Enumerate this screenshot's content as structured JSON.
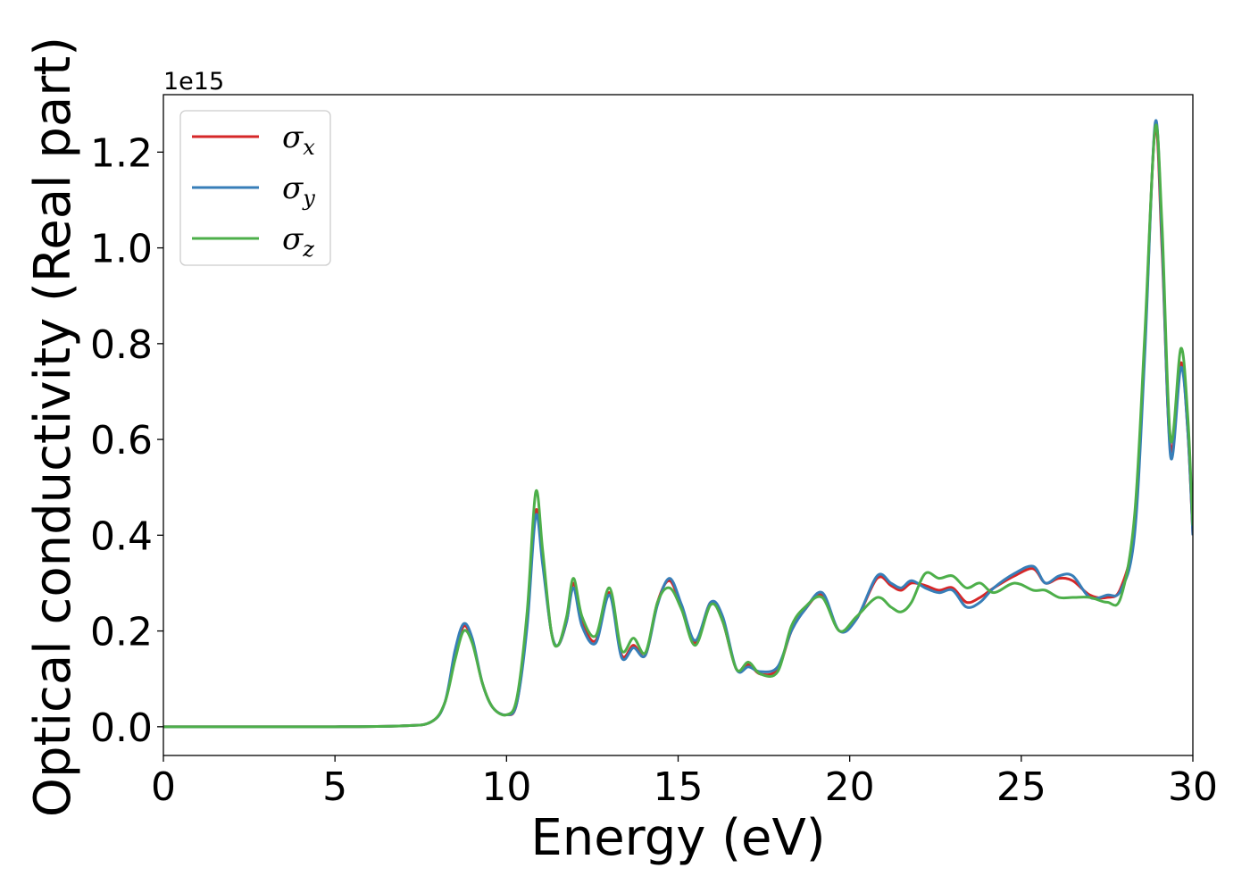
{
  "chart_data": {
    "type": "line",
    "title": "",
    "xlabel": "Energy (eV)",
    "ylabel": "Optical conductivity (Real part)",
    "y_offset_label": "1e15",
    "xlim": [
      0,
      30
    ],
    "ylim": [
      -0.06,
      1.32
    ],
    "xticks": [
      0,
      5,
      10,
      15,
      20,
      25,
      30
    ],
    "xtick_labels": [
      "0",
      "5",
      "10",
      "15",
      "20",
      "25",
      "30"
    ],
    "yticks": [
      0.0,
      0.2,
      0.4,
      0.6,
      0.8,
      1.0,
      1.2
    ],
    "ytick_labels": [
      "0.0",
      "0.2",
      "0.4",
      "0.6",
      "0.8",
      "1.0",
      "1.2"
    ],
    "grid": false,
    "legend_position": "top-left",
    "series": [
      {
        "name": "σ",
        "subscript": "x",
        "color": "#d62728",
        "points": [
          [
            0,
            0
          ],
          [
            5,
            0
          ],
          [
            7,
            0.002
          ],
          [
            7.8,
            0.01
          ],
          [
            8.2,
            0.05
          ],
          [
            8.5,
            0.15
          ],
          [
            8.75,
            0.21
          ],
          [
            9,
            0.18
          ],
          [
            9.3,
            0.09
          ],
          [
            9.6,
            0.04
          ],
          [
            10,
            0.025
          ],
          [
            10.3,
            0.05
          ],
          [
            10.6,
            0.22
          ],
          [
            10.85,
            0.45
          ],
          [
            11.05,
            0.35
          ],
          [
            11.3,
            0.2
          ],
          [
            11.5,
            0.17
          ],
          [
            11.75,
            0.22
          ],
          [
            11.95,
            0.3
          ],
          [
            12.2,
            0.22
          ],
          [
            12.6,
            0.18
          ],
          [
            13,
            0.28
          ],
          [
            13.35,
            0.15
          ],
          [
            13.7,
            0.17
          ],
          [
            14.05,
            0.15
          ],
          [
            14.4,
            0.26
          ],
          [
            14.75,
            0.305
          ],
          [
            15.1,
            0.25
          ],
          [
            15.5,
            0.175
          ],
          [
            15.95,
            0.26
          ],
          [
            16.3,
            0.22
          ],
          [
            16.7,
            0.12
          ],
          [
            17.05,
            0.13
          ],
          [
            17.4,
            0.11
          ],
          [
            17.9,
            0.12
          ],
          [
            18.3,
            0.2
          ],
          [
            18.7,
            0.245
          ],
          [
            19.2,
            0.275
          ],
          [
            19.7,
            0.2
          ],
          [
            20.2,
            0.225
          ],
          [
            20.8,
            0.31
          ],
          [
            21.2,
            0.295
          ],
          [
            21.5,
            0.285
          ],
          [
            21.8,
            0.3
          ],
          [
            22.2,
            0.295
          ],
          [
            22.6,
            0.285
          ],
          [
            23,
            0.29
          ],
          [
            23.4,
            0.26
          ],
          [
            23.8,
            0.27
          ],
          [
            24.2,
            0.29
          ],
          [
            24.8,
            0.315
          ],
          [
            25.35,
            0.33
          ],
          [
            25.7,
            0.3
          ],
          [
            26.1,
            0.31
          ],
          [
            26.5,
            0.305
          ],
          [
            27.0,
            0.275
          ],
          [
            27.5,
            0.27
          ],
          [
            27.9,
            0.29
          ],
          [
            28.3,
            0.42
          ],
          [
            28.6,
            0.8
          ],
          [
            28.9,
            1.25
          ],
          [
            29.1,
            1.0
          ],
          [
            29.35,
            0.58
          ],
          [
            29.65,
            0.76
          ],
          [
            29.85,
            0.62
          ],
          [
            30,
            0.4
          ]
        ]
      },
      {
        "name": "σ",
        "subscript": "y",
        "color": "#377eb8",
        "points": [
          [
            0,
            0
          ],
          [
            5,
            0
          ],
          [
            7,
            0.002
          ],
          [
            7.8,
            0.01
          ],
          [
            8.2,
            0.05
          ],
          [
            8.5,
            0.16
          ],
          [
            8.75,
            0.215
          ],
          [
            9,
            0.185
          ],
          [
            9.3,
            0.09
          ],
          [
            9.6,
            0.04
          ],
          [
            10,
            0.025
          ],
          [
            10.3,
            0.05
          ],
          [
            10.6,
            0.21
          ],
          [
            10.85,
            0.44
          ],
          [
            11.05,
            0.34
          ],
          [
            11.3,
            0.2
          ],
          [
            11.5,
            0.17
          ],
          [
            11.75,
            0.22
          ],
          [
            11.95,
            0.29
          ],
          [
            12.2,
            0.21
          ],
          [
            12.6,
            0.175
          ],
          [
            13,
            0.275
          ],
          [
            13.35,
            0.145
          ],
          [
            13.7,
            0.165
          ],
          [
            14.05,
            0.15
          ],
          [
            14.4,
            0.255
          ],
          [
            14.75,
            0.31
          ],
          [
            15.1,
            0.255
          ],
          [
            15.5,
            0.18
          ],
          [
            15.95,
            0.26
          ],
          [
            16.3,
            0.23
          ],
          [
            16.7,
            0.12
          ],
          [
            17.05,
            0.125
          ],
          [
            17.4,
            0.115
          ],
          [
            17.9,
            0.125
          ],
          [
            18.3,
            0.2
          ],
          [
            18.7,
            0.245
          ],
          [
            19.2,
            0.28
          ],
          [
            19.7,
            0.2
          ],
          [
            20.2,
            0.225
          ],
          [
            20.8,
            0.315
          ],
          [
            21.2,
            0.3
          ],
          [
            21.5,
            0.29
          ],
          [
            21.8,
            0.305
          ],
          [
            22.2,
            0.29
          ],
          [
            22.6,
            0.28
          ],
          [
            23,
            0.285
          ],
          [
            23.4,
            0.25
          ],
          [
            23.8,
            0.26
          ],
          [
            24.2,
            0.29
          ],
          [
            24.8,
            0.32
          ],
          [
            25.35,
            0.335
          ],
          [
            25.7,
            0.3
          ],
          [
            26.1,
            0.315
          ],
          [
            26.5,
            0.315
          ],
          [
            27.0,
            0.27
          ],
          [
            27.5,
            0.275
          ],
          [
            27.9,
            0.285
          ],
          [
            28.3,
            0.4
          ],
          [
            28.6,
            0.78
          ],
          [
            28.9,
            1.26
          ],
          [
            29.1,
            1.02
          ],
          [
            29.35,
            0.565
          ],
          [
            29.65,
            0.75
          ],
          [
            29.85,
            0.62
          ],
          [
            30,
            0.4
          ]
        ]
      },
      {
        "name": "σ",
        "subscript": "z",
        "color": "#4daf4a",
        "points": [
          [
            0,
            0
          ],
          [
            5,
            0
          ],
          [
            7,
            0.002
          ],
          [
            7.8,
            0.01
          ],
          [
            8.2,
            0.05
          ],
          [
            8.5,
            0.14
          ],
          [
            8.75,
            0.2
          ],
          [
            9,
            0.175
          ],
          [
            9.3,
            0.09
          ],
          [
            9.6,
            0.04
          ],
          [
            10,
            0.025
          ],
          [
            10.3,
            0.06
          ],
          [
            10.6,
            0.24
          ],
          [
            10.85,
            0.49
          ],
          [
            11.05,
            0.37
          ],
          [
            11.3,
            0.2
          ],
          [
            11.5,
            0.17
          ],
          [
            11.75,
            0.23
          ],
          [
            11.95,
            0.31
          ],
          [
            12.2,
            0.23
          ],
          [
            12.6,
            0.19
          ],
          [
            13,
            0.29
          ],
          [
            13.35,
            0.16
          ],
          [
            13.7,
            0.185
          ],
          [
            14.05,
            0.155
          ],
          [
            14.4,
            0.26
          ],
          [
            14.75,
            0.29
          ],
          [
            15.1,
            0.245
          ],
          [
            15.5,
            0.17
          ],
          [
            15.95,
            0.255
          ],
          [
            16.3,
            0.22
          ],
          [
            16.7,
            0.12
          ],
          [
            17.05,
            0.135
          ],
          [
            17.4,
            0.11
          ],
          [
            17.9,
            0.115
          ],
          [
            18.3,
            0.21
          ],
          [
            18.7,
            0.25
          ],
          [
            19.2,
            0.27
          ],
          [
            19.7,
            0.2
          ],
          [
            20.2,
            0.23
          ],
          [
            20.8,
            0.27
          ],
          [
            21.2,
            0.25
          ],
          [
            21.5,
            0.24
          ],
          [
            21.8,
            0.26
          ],
          [
            22.2,
            0.32
          ],
          [
            22.6,
            0.31
          ],
          [
            23,
            0.315
          ],
          [
            23.4,
            0.29
          ],
          [
            23.8,
            0.3
          ],
          [
            24.2,
            0.28
          ],
          [
            24.8,
            0.3
          ],
          [
            25.35,
            0.285
          ],
          [
            25.7,
            0.285
          ],
          [
            26.1,
            0.27
          ],
          [
            26.5,
            0.27
          ],
          [
            27.0,
            0.27
          ],
          [
            27.5,
            0.26
          ],
          [
            27.9,
            0.27
          ],
          [
            28.3,
            0.44
          ],
          [
            28.6,
            0.82
          ],
          [
            28.9,
            1.25
          ],
          [
            29.1,
            1.05
          ],
          [
            29.35,
            0.6
          ],
          [
            29.65,
            0.79
          ],
          [
            29.85,
            0.65
          ],
          [
            30,
            0.42
          ]
        ]
      }
    ]
  }
}
